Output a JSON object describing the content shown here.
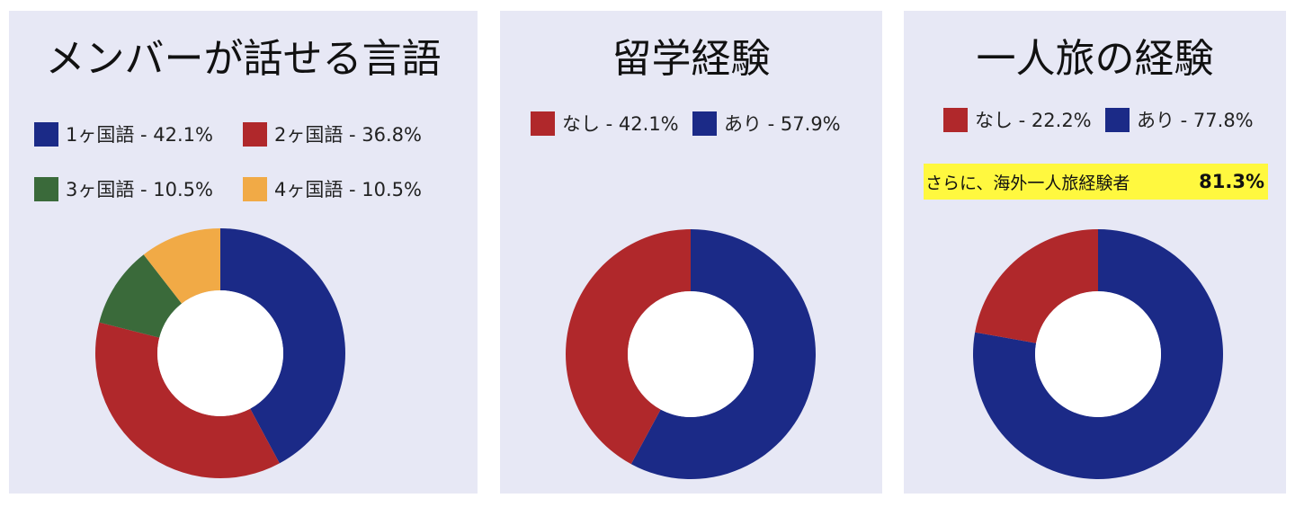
{
  "colors": {
    "navy": "#1b2a87",
    "red": "#b0282b",
    "green": "#3a6a3a",
    "orange": "#f1aa46",
    "panel_bg": "#e7e8f5",
    "highlight": "#fff83f"
  },
  "chart_data": [
    {
      "type": "pie",
      "style": "donut",
      "title": "メンバーが話せる言語",
      "legend": [
        {
          "label": "1ヶ国語 - 42.1%",
          "color": "#1b2a87"
        },
        {
          "label": "2ヶ国語 - 36.8%",
          "color": "#b0282b"
        },
        {
          "label": "3ヶ国語 - 10.5%",
          "color": "#3a6a3a"
        },
        {
          "label": "4ヶ国語 - 10.5%",
          "color": "#f1aa46"
        }
      ],
      "slices": [
        {
          "name": "1ヶ国語",
          "value": 42.1,
          "color": "#1b2a87"
        },
        {
          "name": "2ヶ国語",
          "value": 36.8,
          "color": "#b0282b"
        },
        {
          "name": "3ヶ国語",
          "value": 10.5,
          "color": "#3a6a3a"
        },
        {
          "name": "4ヶ国語",
          "value": 10.5,
          "color": "#f1aa46"
        }
      ]
    },
    {
      "type": "pie",
      "style": "donut",
      "title": "留学経験",
      "legend": [
        {
          "label": "なし - 42.1%",
          "color": "#b0282b"
        },
        {
          "label": "あり - 57.9%",
          "color": "#1b2a87"
        }
      ],
      "slices": [
        {
          "name": "あり",
          "value": 57.9,
          "color": "#1b2a87"
        },
        {
          "name": "なし",
          "value": 42.1,
          "color": "#b0282b"
        }
      ]
    },
    {
      "type": "pie",
      "style": "donut",
      "title": "一人旅の経験",
      "legend": [
        {
          "label": "なし - 22.2%",
          "color": "#b0282b"
        },
        {
          "label": "あり - 77.8%",
          "color": "#1b2a87"
        }
      ],
      "slices": [
        {
          "name": "あり",
          "value": 77.8,
          "color": "#1b2a87"
        },
        {
          "name": "なし",
          "value": 22.2,
          "color": "#b0282b"
        }
      ],
      "annotation": {
        "text": "さらに、海外一人旅経験者",
        "value": "81.3%"
      }
    }
  ]
}
